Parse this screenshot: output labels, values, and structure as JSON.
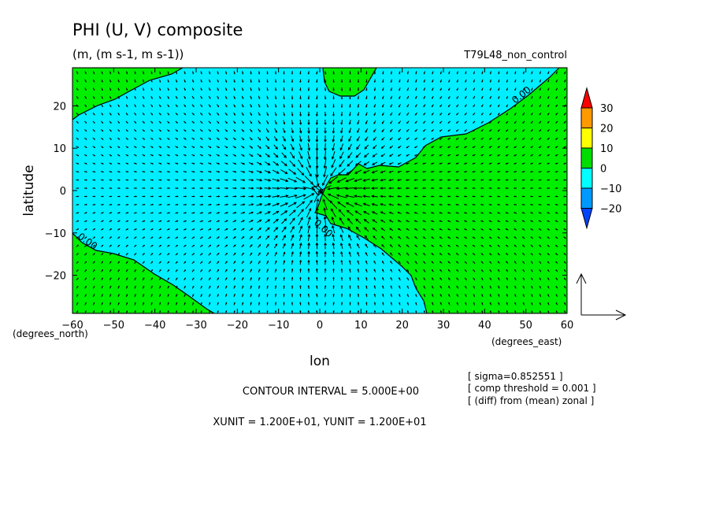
{
  "chart_data": {
    "type": "contour+vector",
    "title": "PHI (U, V) composite",
    "units_line": "(m, (m s-1, m s-1))",
    "run_label": "T79L48_non_control",
    "xlabel": "lon",
    "ylabel": "latitude",
    "x_unit_note": "(degrees_east)",
    "y_unit_note": "(degrees_north)",
    "xlim": [
      -60,
      60
    ],
    "ylim": [
      -29,
      29
    ],
    "x_ticks": [
      "-60",
      "-50",
      "-40",
      "-30",
      "-20",
      "-10",
      "0",
      "10",
      "20",
      "30",
      "40",
      "50",
      "60"
    ],
    "y_ticks": [
      "20",
      "10",
      "0",
      "-10",
      "-20"
    ],
    "colorbar": {
      "levels": [
        "30",
        "20",
        "10",
        "0",
        "-10",
        "-20"
      ],
      "colors": [
        "#ff0000",
        "#ff9900",
        "#ffff00",
        "#00dd00",
        "#00ffff",
        "#0099ff",
        "#0044ff"
      ]
    },
    "shading": {
      "positive_color": "#00ee00",
      "negative_color": "#00eeff"
    },
    "contour_labels": [
      "0.00",
      "0.00",
      "0.00"
    ],
    "contour_interval_text": "CONTOUR INTERVAL = 5.000E+00",
    "unit_text": "XUNIT = 1.200E+01, YUNIT = 1.200E+01",
    "notes": [
      "[ sigma=0.852551 ]",
      "[ comp threshold = 0.001 ]",
      "[ (diff) from (mean) zonal ]"
    ],
    "vector_field": {
      "convergence_center": [
        0,
        0
      ],
      "description": "winds converge toward (0,0)"
    }
  }
}
